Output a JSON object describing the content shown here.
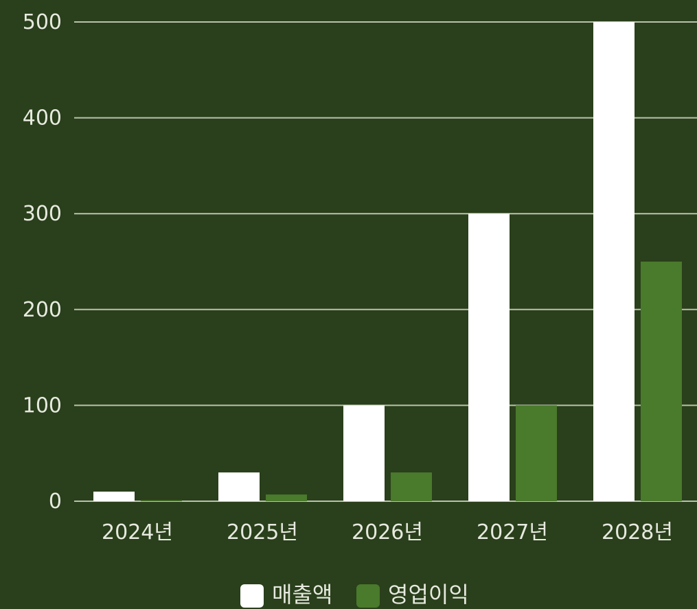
{
  "chart_data": {
    "type": "bar",
    "categories": [
      "2024년",
      "2025년",
      "2026년",
      "2027년",
      "2028년"
    ],
    "series": [
      {
        "name": "매출액",
        "values": [
          10,
          30,
          100,
          300,
          500
        ],
        "color": "#ffffff"
      },
      {
        "name": "영업이익",
        "values": [
          1,
          7,
          30,
          100,
          250
        ],
        "color": "#4a7a2c"
      }
    ],
    "y_ticks": [
      0,
      100,
      200,
      300,
      400,
      500
    ],
    "ylim": [
      0,
      500
    ],
    "grid": true,
    "legend_position": "bottom-center",
    "title": "",
    "xlabel": "",
    "ylabel": ""
  },
  "colors": {
    "background": "#2a3f1b",
    "gridline": "#b9c3ad",
    "text": "#e6eadf"
  }
}
